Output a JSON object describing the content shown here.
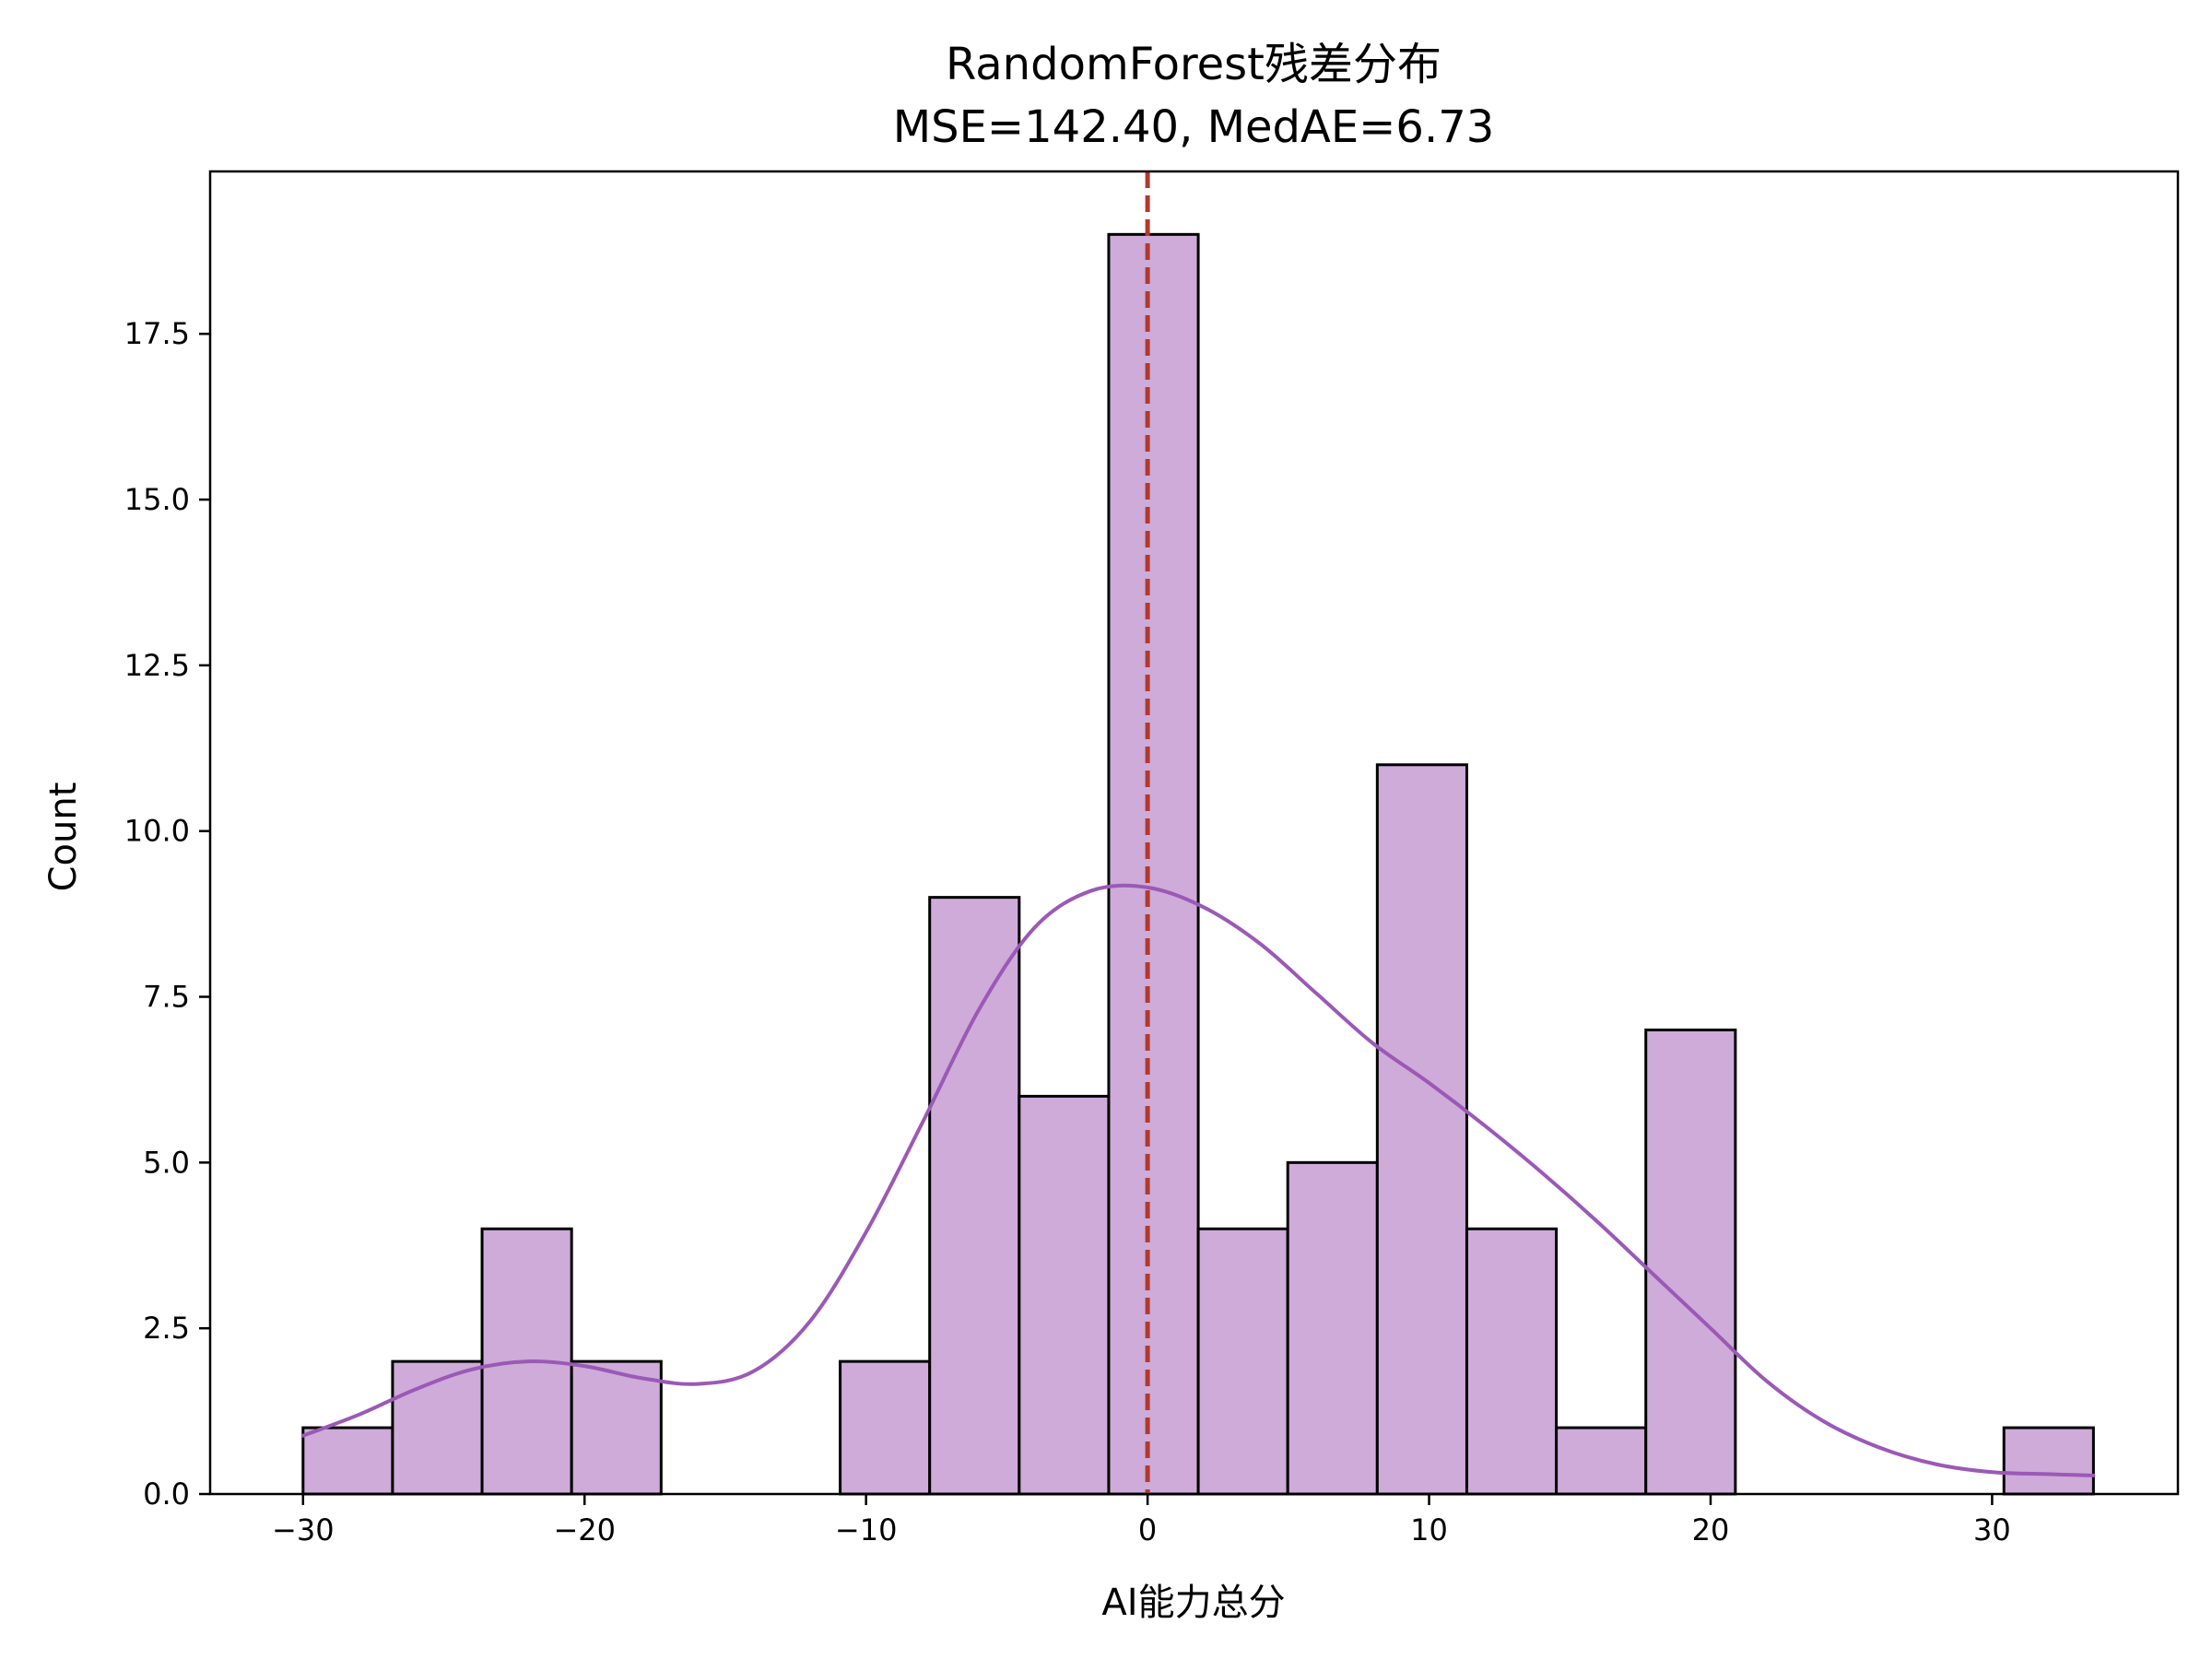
{
  "chart_data": {
    "type": "histogram",
    "title": "RandomForest残差分布",
    "subtitle": "MSE=142.40, MedAE=6.73",
    "xlabel": "AI能力总分",
    "ylabel": "Count",
    "xlim": [
      -33.3,
      36.6
    ],
    "ylim": [
      0,
      19.95
    ],
    "xticks": [
      -30,
      -20,
      -10,
      0,
      10,
      20,
      30
    ],
    "xtick_labels": [
      "−30",
      "−20",
      "−10",
      "0",
      "10",
      "20",
      "30"
    ],
    "yticks": [
      0,
      2.5,
      5,
      7.5,
      10,
      12.5,
      15,
      17.5
    ],
    "ytick_labels": [
      "0.0",
      "2.5",
      "5.0",
      "7.5",
      "10.0",
      "12.5",
      "15.0",
      "17.5"
    ],
    "bins": [
      {
        "x0": -30.0,
        "x1": -26.82,
        "count": 1
      },
      {
        "x0": -26.82,
        "x1": -23.64,
        "count": 2
      },
      {
        "x0": -23.64,
        "x1": -20.46,
        "count": 4
      },
      {
        "x0": -20.46,
        "x1": -17.28,
        "count": 2
      },
      {
        "x0": -17.28,
        "x1": -14.1,
        "count": 0
      },
      {
        "x0": -14.1,
        "x1": -10.92,
        "count": 0
      },
      {
        "x0": -10.92,
        "x1": -7.74,
        "count": 2
      },
      {
        "x0": -7.74,
        "x1": -4.56,
        "count": 9
      },
      {
        "x0": -4.56,
        "x1": -1.38,
        "count": 6
      },
      {
        "x0": -1.38,
        "x1": 1.8,
        "count": 19
      },
      {
        "x0": 1.8,
        "x1": 4.98,
        "count": 4
      },
      {
        "x0": 4.98,
        "x1": 8.16,
        "count": 5
      },
      {
        "x0": 8.16,
        "x1": 11.34,
        "count": 11
      },
      {
        "x0": 11.34,
        "x1": 14.52,
        "count": 4
      },
      {
        "x0": 14.52,
        "x1": 17.7,
        "count": 1
      },
      {
        "x0": 17.7,
        "x1": 20.88,
        "count": 7
      },
      {
        "x0": 20.88,
        "x1": 24.06,
        "count": 0
      },
      {
        "x0": 24.06,
        "x1": 27.24,
        "count": 0
      },
      {
        "x0": 27.24,
        "x1": 30.42,
        "count": 0
      },
      {
        "x0": 30.42,
        "x1": 33.6,
        "count": 1
      }
    ],
    "kde": {
      "x": [
        -30,
        -28,
        -26,
        -24,
        -22,
        -20,
        -18,
        -16,
        -14,
        -12,
        -10,
        -8,
        -6,
        -4,
        -2,
        0,
        2,
        4,
        6,
        8,
        10,
        12,
        14,
        16,
        18,
        20,
        22,
        24,
        26,
        28,
        30,
        32,
        33.6
      ],
      "y": [
        0.88,
        1.2,
        1.58,
        1.88,
        2.0,
        1.93,
        1.75,
        1.66,
        1.85,
        2.6,
        3.95,
        5.6,
        7.3,
        8.55,
        9.1,
        9.15,
        8.85,
        8.3,
        7.55,
        6.8,
        6.2,
        5.55,
        4.85,
        4.1,
        3.3,
        2.5,
        1.7,
        1.1,
        0.7,
        0.45,
        0.33,
        0.3,
        0.28
      ]
    },
    "vline": {
      "x": 0,
      "style": "dashed",
      "color": "#b03a2e"
    },
    "colors": {
      "bar_fill": "#ceabd9",
      "bar_edge": "#000000",
      "kde": "#9b59b6",
      "vline": "#b03a2e"
    },
    "grid": false,
    "legend": "none"
  }
}
